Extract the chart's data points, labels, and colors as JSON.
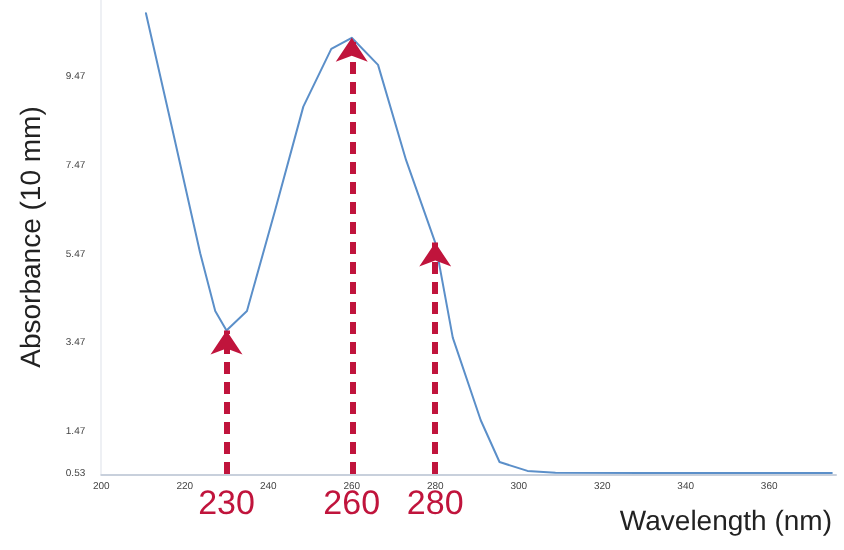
{
  "chart_data": {
    "type": "line",
    "xlabel": "Wavelength (nm)",
    "ylabel": "Absorbance (10 mm)",
    "x": [
      210.7,
      217,
      223.7,
      227.3,
      230,
      234.9,
      241.6,
      248.4,
      255.1,
      260,
      266.3,
      273,
      280,
      284.2,
      290.9,
      295.4,
      302.1,
      308.8,
      330,
      350,
      375
    ],
    "series": [
      {
        "color": "#5b8fc9",
        "values": [
          10.9,
          8.3,
          5.5,
          4.2,
          3.76,
          4.2,
          6.45,
          8.8,
          10.1,
          10.35,
          9.74,
          7.6,
          5.74,
          3.6,
          1.74,
          0.8,
          0.6,
          0.56,
          0.55,
          0.55,
          0.55
        ]
      }
    ],
    "xlim": [
      200,
      376
    ],
    "xticks": [
      200,
      220,
      240,
      260,
      280,
      300,
      320,
      340,
      360
    ],
    "ylim": [
      0.53,
      11.2
    ],
    "yticks": [
      0.53,
      1.47,
      3.47,
      5.47,
      7.47,
      9.47
    ],
    "marker": "none",
    "line_style": "solid",
    "annotations": [
      {
        "text": "230",
        "x": 230,
        "y": 3.76
      },
      {
        "text": "260",
        "x": 260,
        "y": 10.35
      },
      {
        "text": "280",
        "x": 280,
        "y": 5.74
      }
    ]
  }
}
